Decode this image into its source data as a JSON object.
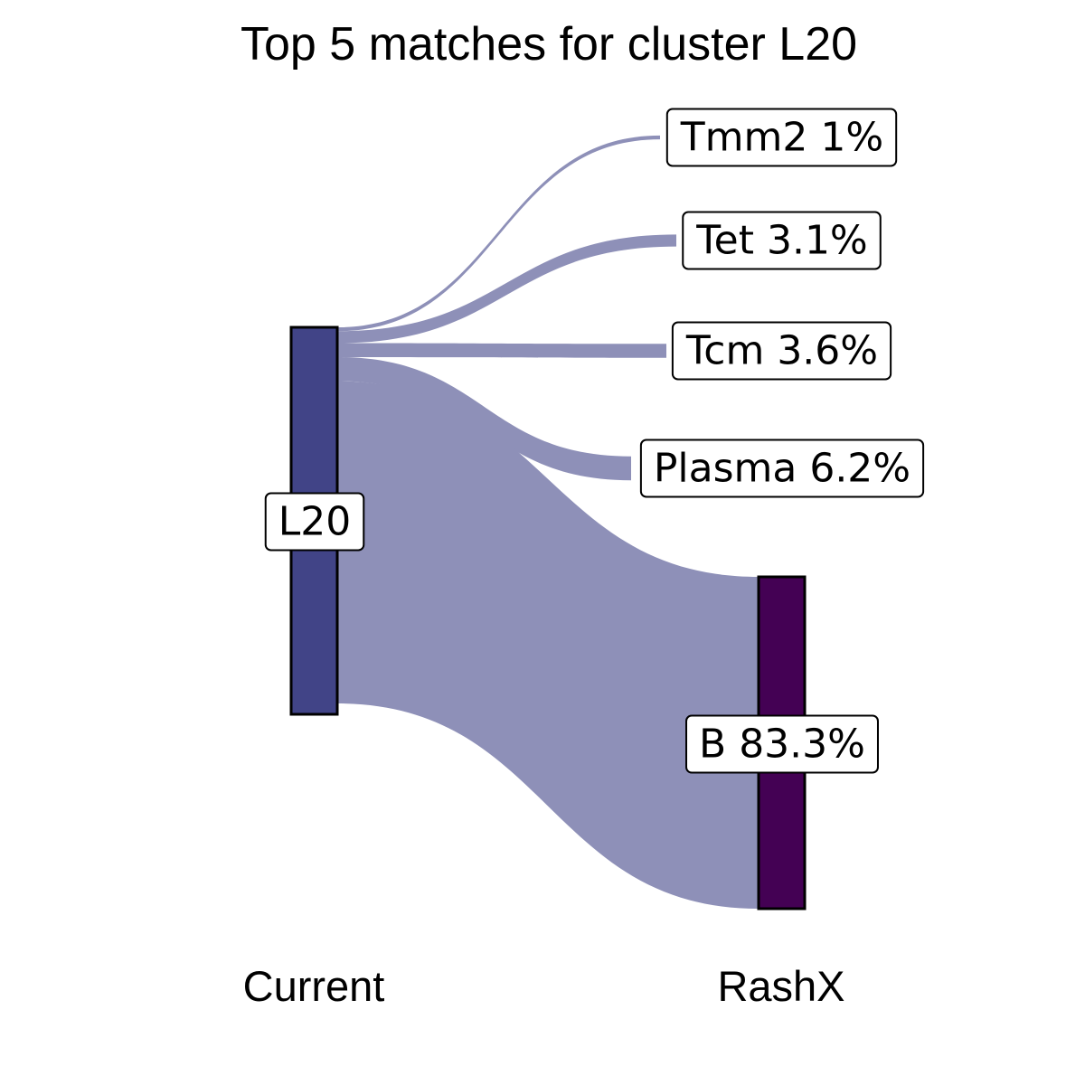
{
  "chart_data": {
    "type": "sankey",
    "title": "Top 5 matches for cluster L20",
    "axis_labels": [
      "Current",
      "RashX"
    ],
    "source": {
      "name": "L20",
      "color": "#414487"
    },
    "targets": [
      {
        "name": "Tmm2",
        "value": 1,
        "label": "Tmm2 1%"
      },
      {
        "name": "Tet",
        "value": 3.1,
        "label": "Tet 3.1%"
      },
      {
        "name": "Tcm",
        "value": 3.6,
        "label": "Tcm 3.6%"
      },
      {
        "name": "Plasma",
        "value": 6.2,
        "label": "Plasma 6.2%"
      },
      {
        "name": "B",
        "value": 83.3,
        "label": "B 83.3%",
        "color": "#440154"
      }
    ],
    "unit": "%",
    "colors": {
      "flow": "#8e90b8",
      "source_node": "#414487",
      "target_node_B": "#440154"
    }
  }
}
